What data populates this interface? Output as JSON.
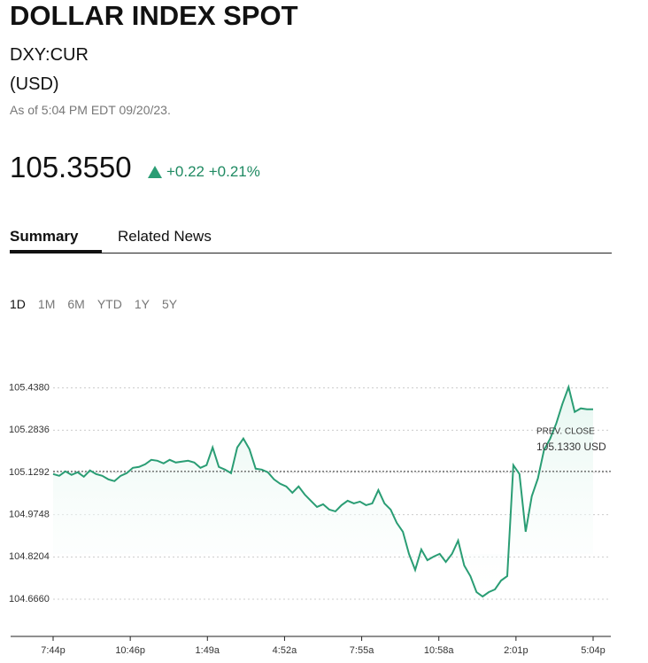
{
  "header": {
    "title": "DOLLAR INDEX SPOT",
    "symbol": "DXY:CUR",
    "currency": "(USD)",
    "as_of": "As of 5:04 PM EDT 09/20/23.",
    "price": "105.3550",
    "change": "+0.22",
    "change_percent": "+0.21%"
  },
  "tabs": [
    "Summary",
    "Related News"
  ],
  "ranges": [
    "1D",
    "1M",
    "6M",
    "YTD",
    "1Y",
    "5Y"
  ],
  "chart_data": {
    "type": "line",
    "color": "#2a9d74",
    "x_labels": [
      "7:44p",
      "10:46p",
      "1:49a",
      "4:52a",
      "7:55a",
      "10:58a",
      "2:01p",
      "5:04p"
    ],
    "values": [
      105.1233,
      105.1168,
      105.1331,
      105.1201,
      105.1298,
      105.1136,
      105.1363,
      105.1233,
      105.1168,
      105.1039,
      105.0974,
      105.1168,
      105.1266,
      105.146,
      105.1493,
      105.159,
      105.1752,
      105.172,
      105.1623,
      105.1752,
      105.1655,
      105.1687,
      105.172,
      105.1655,
      105.146,
      105.1558,
      105.2207,
      105.1493,
      105.1396,
      105.1266,
      105.2207,
      105.2531,
      105.2142,
      105.1428,
      105.1396,
      105.1298,
      105.1039,
      105.0876,
      105.0779,
      105.0552,
      105.0779,
      105.0487,
      105.026,
      105.0033,
      105.013,
      104.9936,
      104.9871,
      105.0098,
      105.026,
      105.0163,
      105.0228,
      105.0098,
      105.0163,
      105.0649,
      105.0163,
      104.9936,
      104.9449,
      104.9125,
      104.8314,
      104.773,
      104.8476,
      104.8087,
      104.8216,
      104.8314,
      104.8022,
      104.8314,
      104.88,
      104.7892,
      104.7503,
      104.6919,
      104.6757,
      104.6919,
      104.7016,
      104.7341,
      104.7503,
      105.1558,
      105.1233,
      104.9125,
      105.0422,
      105.1071,
      105.2109,
      105.2531,
      105.3082,
      105.3796,
      105.4412,
      105.3504,
      105.3634,
      105.3601,
      105.3601
    ],
    "ylim": [
      104.53,
      105.56
    ],
    "yticks": [
      {
        "value": 105.438,
        "label": "105.4380"
      },
      105.2836,
      105.1292,
      104.9748,
      104.8204,
      {
        "value": 104.666,
        "label": "104.6660"
      }
    ],
    "grid": true,
    "reference_line": {
      "label": "PREV. CLOSE",
      "value": 105.133,
      "value_label": "105.1330 USD"
    }
  }
}
